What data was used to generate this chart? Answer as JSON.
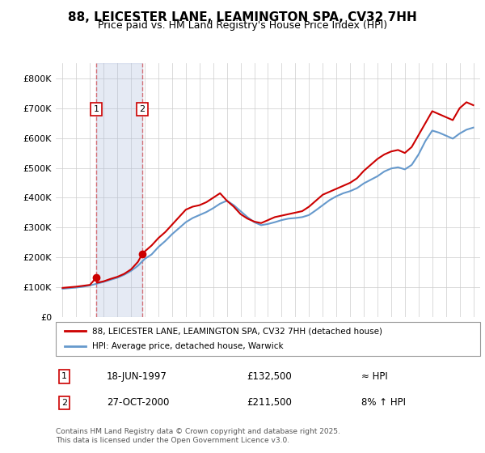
{
  "title": "88, LEICESTER LANE, LEAMINGTON SPA, CV32 7HH",
  "subtitle": "Price paid vs. HM Land Registry's House Price Index (HPI)",
  "legend_line1": "88, LEICESTER LANE, LEAMINGTON SPA, CV32 7HH (detached house)",
  "legend_line2": "HPI: Average price, detached house, Warwick",
  "footer": "Contains HM Land Registry data © Crown copyright and database right 2025.\nThis data is licensed under the Open Government Licence v3.0.",
  "sale1_label": "1",
  "sale1_date": "18-JUN-1997",
  "sale1_price": "£132,500",
  "sale1_hpi": "≈ HPI",
  "sale2_label": "2",
  "sale2_date": "27-OCT-2000",
  "sale2_price": "£211,500",
  "sale2_hpi": "8% ↑ HPI",
  "sale1_year": 1997.46,
  "sale1_value": 132500,
  "sale2_year": 2000.82,
  "sale2_value": 211500,
  "red_color": "#cc0000",
  "blue_color": "#6699cc",
  "vline_color": "#cc0000",
  "vline_alpha": 0.5,
  "shade_color": "#aabbdd",
  "shade_alpha": 0.3,
  "ylim_min": 0,
  "ylim_max": 850000,
  "xlim_min": 1994.5,
  "xlim_max": 2025.5,
  "yticks": [
    0,
    100000,
    200000,
    300000,
    400000,
    500000,
    600000,
    700000,
    800000
  ],
  "ytick_labels": [
    "£0",
    "£100K",
    "£200K",
    "£300K",
    "£400K",
    "£500K",
    "£600K",
    "£700K",
    "£800K"
  ],
  "xticks": [
    1995,
    1996,
    1997,
    1998,
    1999,
    2000,
    2001,
    2002,
    2003,
    2004,
    2005,
    2006,
    2007,
    2008,
    2009,
    2010,
    2011,
    2012,
    2013,
    2014,
    2015,
    2016,
    2017,
    2018,
    2019,
    2020,
    2021,
    2022,
    2023,
    2024,
    2025
  ],
  "red_x": [
    1995.0,
    1995.5,
    1996.0,
    1996.5,
    1997.0,
    1997.46,
    1997.5,
    1998.0,
    1998.5,
    1999.0,
    1999.5,
    2000.0,
    2000.5,
    2000.82,
    2001.0,
    2001.5,
    2002.0,
    2002.5,
    2003.0,
    2003.5,
    2004.0,
    2004.5,
    2005.0,
    2005.5,
    2006.0,
    2006.5,
    2007.0,
    2007.5,
    2008.0,
    2008.5,
    2009.0,
    2009.5,
    2010.0,
    2010.5,
    2011.0,
    2011.5,
    2012.0,
    2012.5,
    2013.0,
    2013.5,
    2014.0,
    2014.5,
    2015.0,
    2015.5,
    2016.0,
    2016.5,
    2017.0,
    2017.5,
    2018.0,
    2018.5,
    2019.0,
    2019.5,
    2020.0,
    2020.5,
    2021.0,
    2021.5,
    2022.0,
    2022.5,
    2023.0,
    2023.5,
    2024.0,
    2024.5,
    2025.0
  ],
  "red_y": [
    98000,
    100000,
    102000,
    105000,
    108000,
    132500,
    115000,
    120000,
    128000,
    135000,
    145000,
    160000,
    185000,
    211500,
    220000,
    240000,
    265000,
    285000,
    310000,
    335000,
    360000,
    370000,
    375000,
    385000,
    400000,
    415000,
    390000,
    370000,
    345000,
    330000,
    320000,
    315000,
    325000,
    335000,
    340000,
    345000,
    350000,
    355000,
    370000,
    390000,
    410000,
    420000,
    430000,
    440000,
    450000,
    465000,
    490000,
    510000,
    530000,
    545000,
    555000,
    560000,
    550000,
    570000,
    610000,
    650000,
    690000,
    680000,
    670000,
    660000,
    700000,
    720000,
    710000
  ],
  "blue_x": [
    1995.0,
    1995.5,
    1996.0,
    1996.5,
    1997.0,
    1997.5,
    1998.0,
    1998.5,
    1999.0,
    1999.5,
    2000.0,
    2000.5,
    2001.0,
    2001.5,
    2002.0,
    2002.5,
    2003.0,
    2003.5,
    2004.0,
    2004.5,
    2005.0,
    2005.5,
    2006.0,
    2006.5,
    2007.0,
    2007.5,
    2008.0,
    2008.5,
    2009.0,
    2009.5,
    2010.0,
    2010.5,
    2011.0,
    2011.5,
    2012.0,
    2012.5,
    2013.0,
    2013.5,
    2014.0,
    2014.5,
    2015.0,
    2015.5,
    2016.0,
    2016.5,
    2017.0,
    2017.5,
    2018.0,
    2018.5,
    2019.0,
    2019.5,
    2020.0,
    2020.5,
    2021.0,
    2021.5,
    2022.0,
    2022.5,
    2023.0,
    2023.5,
    2024.0,
    2024.5,
    2025.0
  ],
  "blue_y": [
    95000,
    97000,
    99000,
    102000,
    106000,
    112000,
    118000,
    125000,
    132000,
    142000,
    155000,
    172000,
    195000,
    210000,
    235000,
    255000,
    278000,
    298000,
    318000,
    332000,
    342000,
    352000,
    365000,
    380000,
    390000,
    375000,
    355000,
    335000,
    318000,
    308000,
    312000,
    318000,
    325000,
    330000,
    332000,
    335000,
    342000,
    358000,
    375000,
    392000,
    405000,
    415000,
    422000,
    432000,
    448000,
    460000,
    472000,
    488000,
    498000,
    502000,
    495000,
    510000,
    545000,
    590000,
    625000,
    618000,
    608000,
    598000,
    615000,
    628000,
    635000
  ]
}
